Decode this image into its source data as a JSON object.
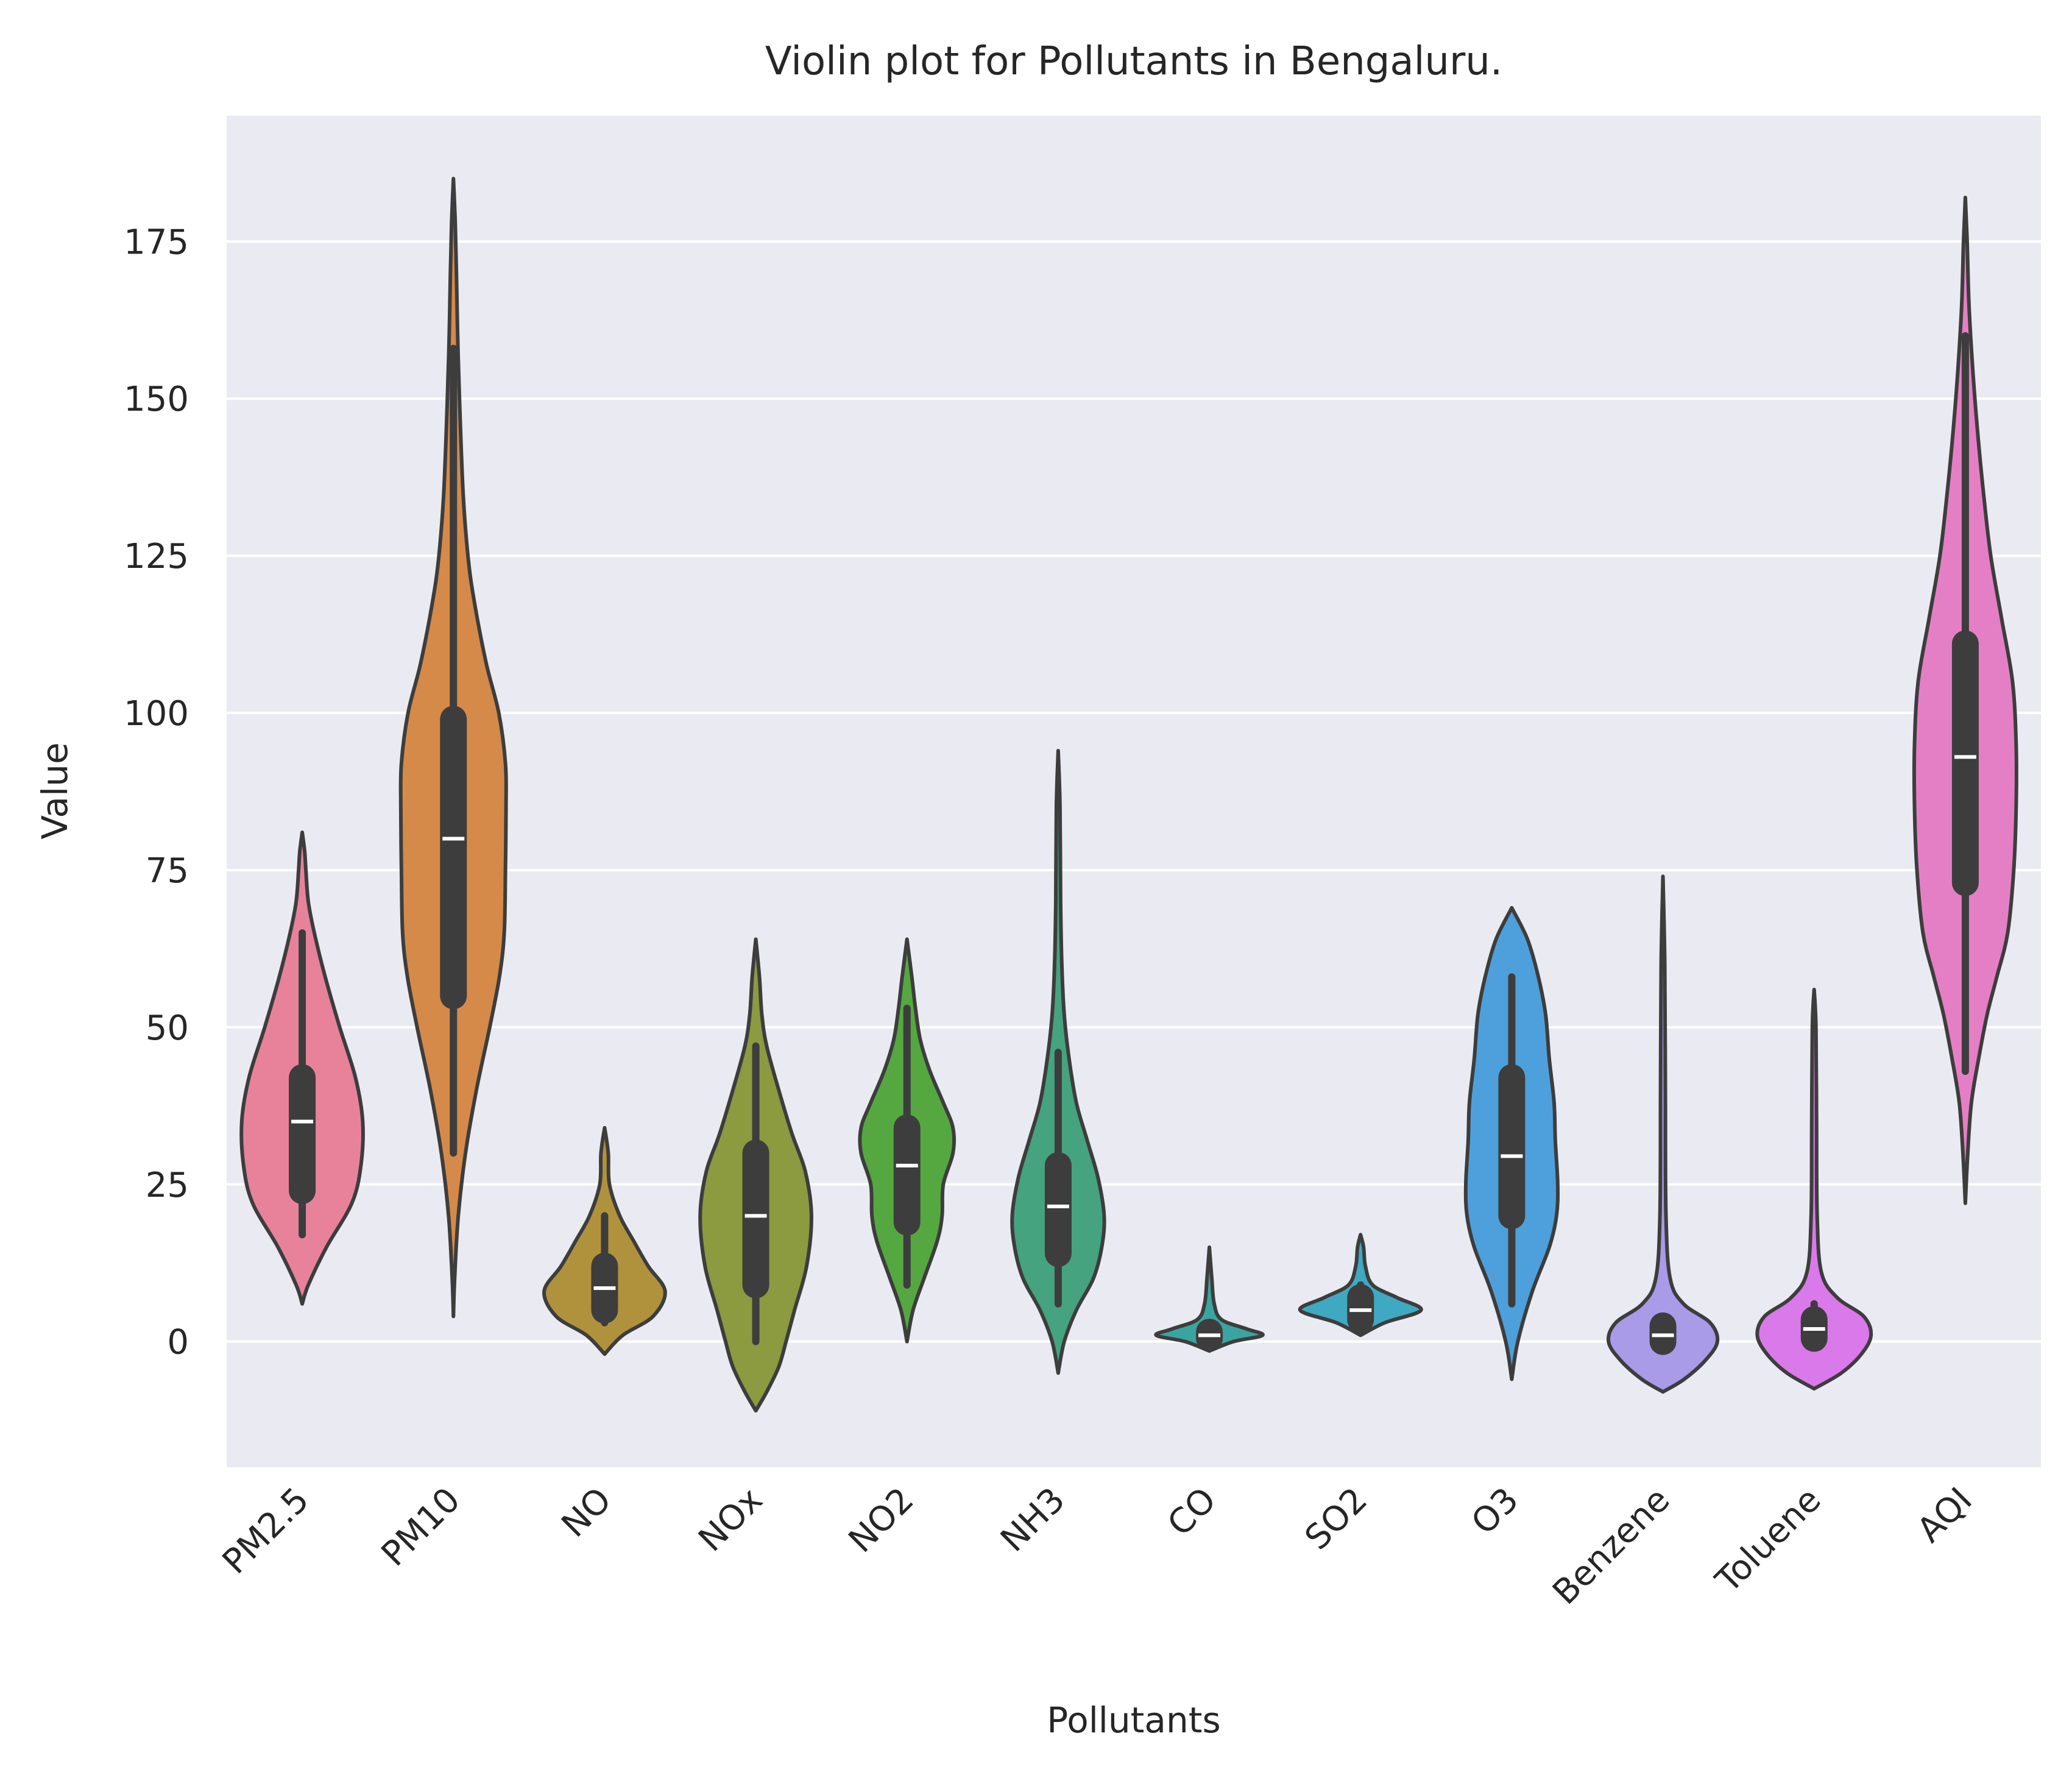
{
  "chart_data": {
    "type": "violin",
    "title": "Violin plot for Pollutants in Bengaluru.",
    "xlabel": "Pollutants",
    "ylabel": "Value",
    "ylim": [
      -20,
      195
    ],
    "yticks": [
      0,
      25,
      50,
      75,
      100,
      125,
      150,
      175
    ],
    "grid": true,
    "categories": [
      "PM2.5",
      "PM10",
      "NO",
      "NOx",
      "NO2",
      "NH3",
      "CO",
      "SO2",
      "O3",
      "Benzene",
      "Toluene",
      "AQI"
    ],
    "colors": [
      "#e8829b",
      "#d58a4a",
      "#b1923c",
      "#8c9a40",
      "#55a840",
      "#45a380",
      "#3aa5a0",
      "#3fa9c1",
      "#4ea0dc",
      "#a99be8",
      "#da79ea",
      "#e57fc5"
    ],
    "stats": [
      {
        "min": 17,
        "q1": 24,
        "median": 35,
        "q3": 42,
        "max": 65
      },
      {
        "min": 30,
        "q1": 55,
        "median": 80,
        "q3": 99,
        "max": 158
      },
      {
        "min": 3,
        "q1": 5,
        "median": 8.5,
        "q3": 12,
        "max": 20
      },
      {
        "min": 0,
        "q1": 9,
        "median": 20,
        "q3": 30,
        "max": 47
      },
      {
        "min": 9,
        "q1": 19,
        "median": 28,
        "q3": 34,
        "max": 53
      },
      {
        "min": 6,
        "q1": 14,
        "median": 21.5,
        "q3": 28,
        "max": 46
      },
      {
        "min": 0,
        "q1": 0.5,
        "median": 1,
        "q3": 1.5,
        "max": 3
      },
      {
        "min": 2,
        "q1": 3.5,
        "median": 5,
        "q3": 7,
        "max": 9
      },
      {
        "min": 6,
        "q1": 20,
        "median": 29.5,
        "q3": 42,
        "max": 58
      },
      {
        "min": 0,
        "q1": 0,
        "median": 1,
        "q3": 2.5,
        "max": 4
      },
      {
        "min": 0,
        "q1": 0.5,
        "median": 2,
        "q3": 3.5,
        "max": 6
      },
      {
        "min": 43,
        "q1": 73,
        "median": 93,
        "q3": 111,
        "max": 160
      }
    ],
    "density_profiles": [
      [
        [
          6,
          0
        ],
        [
          9,
          0.1
        ],
        [
          15,
          0.4
        ],
        [
          22,
          0.82
        ],
        [
          28,
          0.97
        ],
        [
          35,
          1
        ],
        [
          42,
          0.88
        ],
        [
          50,
          0.62
        ],
        [
          58,
          0.38
        ],
        [
          65,
          0.2
        ],
        [
          70,
          0.1
        ],
        [
          75,
          0.06
        ],
        [
          78,
          0.04
        ],
        [
          81,
          0
        ]
      ],
      [
        [
          4,
          0
        ],
        [
          10,
          0.02
        ],
        [
          20,
          0.08
        ],
        [
          30,
          0.2
        ],
        [
          40,
          0.38
        ],
        [
          50,
          0.6
        ],
        [
          58,
          0.76
        ],
        [
          65,
          0.84
        ],
        [
          75,
          0.86
        ],
        [
          85,
          0.87
        ],
        [
          92,
          0.86
        ],
        [
          100,
          0.75
        ],
        [
          108,
          0.54
        ],
        [
          118,
          0.34
        ],
        [
          125,
          0.24
        ],
        [
          135,
          0.16
        ],
        [
          150,
          0.1
        ],
        [
          160,
          0.07
        ],
        [
          170,
          0.05
        ],
        [
          178,
          0.03
        ],
        [
          185,
          0
        ]
      ],
      [
        [
          -2,
          0
        ],
        [
          1,
          0.3
        ],
        [
          4,
          0.8
        ],
        [
          8,
          1
        ],
        [
          12,
          0.72
        ],
        [
          16,
          0.48
        ],
        [
          20,
          0.25
        ],
        [
          25,
          0.08
        ],
        [
          30,
          0.06
        ],
        [
          34,
          0
        ]
      ],
      [
        [
          -11,
          0
        ],
        [
          -8,
          0.18
        ],
        [
          -4,
          0.38
        ],
        [
          0,
          0.5
        ],
        [
          5,
          0.64
        ],
        [
          12,
          0.84
        ],
        [
          20,
          0.92
        ],
        [
          27,
          0.82
        ],
        [
          33,
          0.6
        ],
        [
          40,
          0.38
        ],
        [
          47,
          0.18
        ],
        [
          52,
          0.1
        ],
        [
          58,
          0.06
        ],
        [
          64,
          0
        ]
      ],
      [
        [
          0,
          0
        ],
        [
          5,
          0.1
        ],
        [
          10,
          0.28
        ],
        [
          16,
          0.5
        ],
        [
          20,
          0.58
        ],
        [
          25,
          0.6
        ],
        [
          30,
          0.76
        ],
        [
          34,
          0.76
        ],
        [
          38,
          0.6
        ],
        [
          43,
          0.38
        ],
        [
          48,
          0.22
        ],
        [
          53,
          0.14
        ],
        [
          58,
          0.08
        ],
        [
          64,
          0
        ]
      ],
      [
        [
          -5,
          0
        ],
        [
          0,
          0.1
        ],
        [
          5,
          0.3
        ],
        [
          10,
          0.58
        ],
        [
          15,
          0.72
        ],
        [
          20,
          0.76
        ],
        [
          26,
          0.66
        ],
        [
          32,
          0.48
        ],
        [
          38,
          0.3
        ],
        [
          45,
          0.18
        ],
        [
          52,
          0.1
        ],
        [
          60,
          0.06
        ],
        [
          70,
          0.04
        ],
        [
          85,
          0.03
        ],
        [
          94,
          0
        ]
      ],
      [
        [
          -1.5,
          0
        ],
        [
          0,
          0.4
        ],
        [
          1,
          0.88
        ],
        [
          2,
          0.62
        ],
        [
          3.5,
          0.2
        ],
        [
          6,
          0.08
        ],
        [
          10,
          0.04
        ],
        [
          15,
          0
        ]
      ],
      [
        [
          1,
          0
        ],
        [
          3,
          0.4
        ],
        [
          5,
          1
        ],
        [
          7,
          0.6
        ],
        [
          9,
          0.2
        ],
        [
          12,
          0.08
        ],
        [
          15,
          0.05
        ],
        [
          17,
          0
        ]
      ],
      [
        [
          -6,
          0
        ],
        [
          0,
          0.1
        ],
        [
          8,
          0.34
        ],
        [
          15,
          0.62
        ],
        [
          20,
          0.74
        ],
        [
          25,
          0.76
        ],
        [
          32,
          0.72
        ],
        [
          38,
          0.7
        ],
        [
          45,
          0.62
        ],
        [
          52,
          0.56
        ],
        [
          58,
          0.44
        ],
        [
          64,
          0.26
        ],
        [
          69,
          0
        ]
      ],
      [
        [
          -8,
          0
        ],
        [
          -6,
          0.35
        ],
        [
          -3,
          0.7
        ],
        [
          0,
          0.9
        ],
        [
          3,
          0.78
        ],
        [
          6,
          0.34
        ],
        [
          10,
          0.12
        ],
        [
          20,
          0.05
        ],
        [
          40,
          0.04
        ],
        [
          60,
          0.03
        ],
        [
          74,
          0
        ]
      ],
      [
        [
          -7.5,
          0
        ],
        [
          -5,
          0.45
        ],
        [
          -2,
          0.78
        ],
        [
          1,
          0.94
        ],
        [
          4,
          0.82
        ],
        [
          7,
          0.38
        ],
        [
          11,
          0.12
        ],
        [
          20,
          0.05
        ],
        [
          35,
          0.04
        ],
        [
          50,
          0.03
        ],
        [
          56,
          0
        ]
      ],
      [
        [
          22,
          0
        ],
        [
          30,
          0.04
        ],
        [
          38,
          0.1
        ],
        [
          45,
          0.22
        ],
        [
          52,
          0.36
        ],
        [
          58,
          0.52
        ],
        [
          65,
          0.7
        ],
        [
          75,
          0.8
        ],
        [
          85,
          0.84
        ],
        [
          95,
          0.84
        ],
        [
          105,
          0.78
        ],
        [
          115,
          0.6
        ],
        [
          125,
          0.42
        ],
        [
          135,
          0.3
        ],
        [
          145,
          0.2
        ],
        [
          155,
          0.12
        ],
        [
          165,
          0.06
        ],
        [
          175,
          0.03
        ],
        [
          182,
          0
        ]
      ]
    ]
  }
}
